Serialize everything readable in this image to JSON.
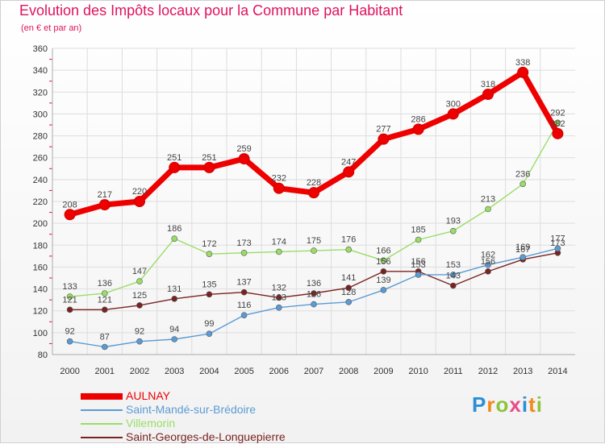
{
  "header": {
    "title": "Evolution des Impôts locaux pour la Commune par Habitant",
    "subtitle": "(en € et par an)"
  },
  "logo": {
    "text": "Proxiti",
    "colors": [
      "#2a8fd6",
      "#f08a1c",
      "#8cc43c",
      "#e94b8a",
      "#2a8fd6",
      "#f08a1c",
      "#8cc43c"
    ]
  },
  "chart_data": {
    "type": "line",
    "x": [
      2000,
      2001,
      2002,
      2003,
      2004,
      2005,
      2006,
      2007,
      2008,
      2009,
      2010,
      2011,
      2012,
      2013,
      2014
    ],
    "ylim": [
      80,
      360
    ],
    "yticks": [
      80,
      100,
      120,
      140,
      160,
      180,
      200,
      220,
      240,
      260,
      280,
      300,
      320,
      340,
      360
    ],
    "grid": true,
    "legend_position": "bottom-left",
    "series": [
      {
        "name": "AULNAY",
        "color": "#ee0000",
        "values": [
          208,
          217,
          220,
          251,
          251,
          259,
          232,
          228,
          247,
          277,
          286,
          300,
          318,
          338,
          282
        ]
      },
      {
        "name": "Saint-Mandé-sur-Brédoire",
        "color": "#5b9bd5",
        "values": [
          92,
          87,
          92,
          94,
          99,
          116,
          123,
          126,
          128,
          139,
          153,
          153,
          162,
          169,
          177
        ]
      },
      {
        "name": "Villemorin",
        "color": "#99dd66",
        "values": [
          133,
          136,
          147,
          186,
          172,
          173,
          174,
          175,
          176,
          166,
          185,
          193,
          213,
          236,
          292
        ]
      },
      {
        "name": "Saint-Georges-de-Longuepierre",
        "color": "#7a2222",
        "values": [
          121,
          121,
          125,
          131,
          135,
          137,
          132,
          136,
          141,
          156,
          156,
          143,
          156,
          167,
          173
        ]
      }
    ]
  }
}
